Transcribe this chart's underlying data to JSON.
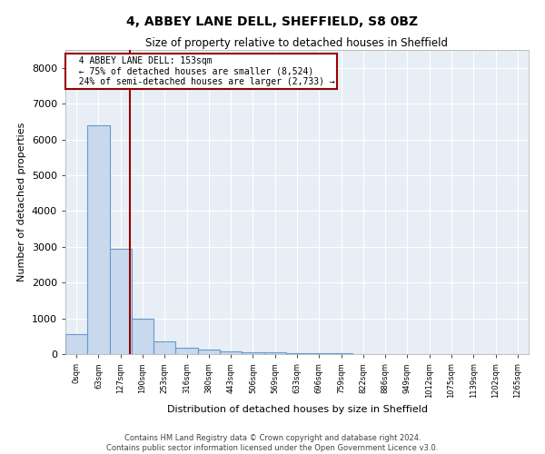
{
  "title": "4, ABBEY LANE DELL, SHEFFIELD, S8 0BZ",
  "subtitle": "Size of property relative to detached houses in Sheffield",
  "xlabel": "Distribution of detached houses by size in Sheffield",
  "ylabel": "Number of detached properties",
  "footer_line1": "Contains HM Land Registry data © Crown copyright and database right 2024.",
  "footer_line2": "Contains public sector information licensed under the Open Government Licence v3.0.",
  "annotation_line1": "4 ABBEY LANE DELL: 153sqm",
  "annotation_line2": "← 75% of detached houses are smaller (8,524)",
  "annotation_line3": "24% of semi-detached houses are larger (2,733) →",
  "bar_color": "#c8d9ee",
  "bar_edge_color": "#6699cc",
  "vline_color": "#990000",
  "annotation_box_edgecolor": "#990000",
  "background_color": "#e8eef5",
  "grid_color": "#d0d8e0",
  "categories": [
    "0sqm",
    "63sqm",
    "127sqm",
    "190sqm",
    "253sqm",
    "316sqm",
    "380sqm",
    "443sqm",
    "506sqm",
    "569sqm",
    "633sqm",
    "696sqm",
    "759sqm",
    "822sqm",
    "886sqm",
    "949sqm",
    "1012sqm",
    "1075sqm",
    "1139sqm",
    "1202sqm",
    "1265sqm"
  ],
  "values": [
    550,
    6400,
    2950,
    1000,
    350,
    175,
    125,
    75,
    50,
    40,
    30,
    20,
    15,
    10,
    8,
    5,
    4,
    3,
    2,
    2,
    1
  ],
  "ylim": [
    0,
    8500
  ],
  "yticks": [
    0,
    1000,
    2000,
    3000,
    4000,
    5000,
    6000,
    7000,
    8000
  ],
  "vline_index": 2.41
}
